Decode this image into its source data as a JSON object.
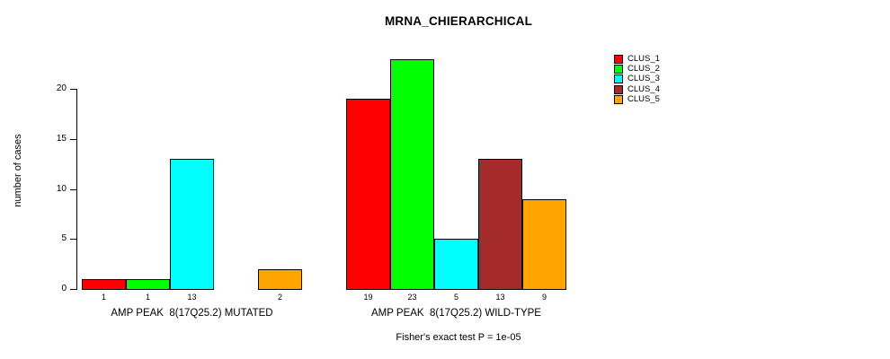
{
  "title": "MRNA_CHIERARCHICAL",
  "footnote": "Fisher's exact test P = 1e-05",
  "y_axis": {
    "label": "number of cases",
    "ticks": [
      0,
      5,
      10,
      15,
      20
    ]
  },
  "legend": {
    "position": "top-right",
    "entries": [
      {
        "label": "CLUS_1",
        "color": "#FF0000"
      },
      {
        "label": "CLUS_2",
        "color": "#00FF00"
      },
      {
        "label": "CLUS_3",
        "color": "#00FFFF"
      },
      {
        "label": "CLUS_4",
        "color": "#A52A2A"
      },
      {
        "label": "CLUS_5",
        "color": "#FFA500"
      }
    ]
  },
  "chart_data": {
    "type": "bar",
    "title": "MRNA_CHIERARCHICAL",
    "xlabel": "",
    "ylabel": "number of cases",
    "ylim": [
      0,
      23
    ],
    "yticks": [
      0,
      5,
      10,
      15,
      20
    ],
    "grid": false,
    "legend_position": "top-right",
    "categories": [
      "AMP PEAK  8(17Q25.2) MUTATED",
      "AMP PEAK  8(17Q25.2) WILD-TYPE"
    ],
    "series": [
      {
        "name": "CLUS_1",
        "color": "#FF0000",
        "values": [
          1,
          19
        ]
      },
      {
        "name": "CLUS_2",
        "color": "#00FF00",
        "values": [
          1,
          23
        ]
      },
      {
        "name": "CLUS_3",
        "color": "#00FFFF",
        "values": [
          13,
          5
        ]
      },
      {
        "name": "CLUS_4",
        "color": "#A52A2A",
        "values": [
          0,
          13
        ]
      },
      {
        "name": "CLUS_5",
        "color": "#FFA500",
        "values": [
          2,
          9
        ]
      }
    ],
    "bar_value_labels": [
      [
        "1",
        "1",
        "13",
        "",
        "2"
      ],
      [
        "19",
        "23",
        "5",
        "13",
        "9"
      ]
    ],
    "footnote": "Fisher's exact test P = 1e-05"
  }
}
